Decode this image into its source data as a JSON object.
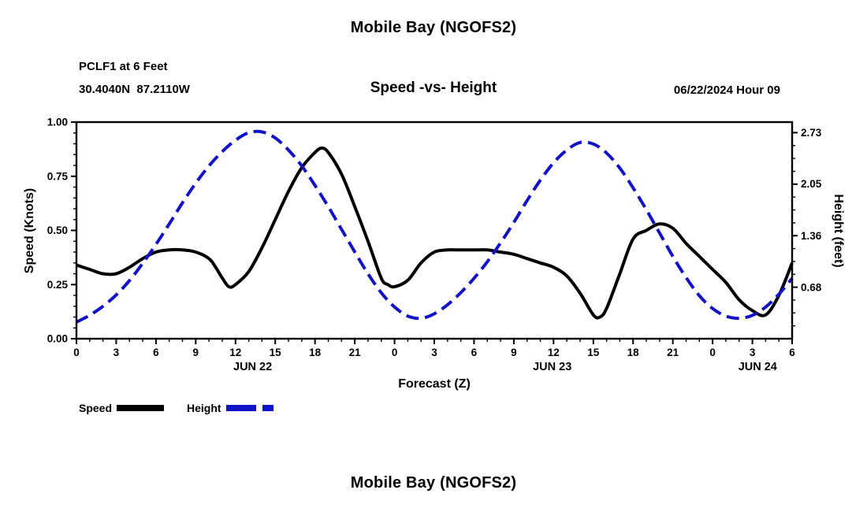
{
  "titles": {
    "top": "Mobile Bay (NGOFS2)",
    "bottom": "Mobile Bay (NGOFS2)"
  },
  "legend": {
    "speed_label": "Speed",
    "height_label": "Height"
  },
  "chart_data": {
    "type": "line",
    "title": "Mobile Bay (NGOFS2)",
    "station": "PCLF1 at 6 Feet",
    "coordinates": "30.4040N  87.2110W",
    "subtitle": "Speed -vs- Height",
    "datetime": "06/22/2024 Hour 09",
    "xlabel": "Forecast (Z)",
    "ylabel_left": "Speed (Knots)",
    "ylabel_right": "Height (feet)",
    "x_range": [
      0,
      54
    ],
    "y_left_range": [
      0,
      1.0
    ],
    "y_right_range": [
      0,
      2.87
    ],
    "x_minor_step": 1,
    "x_ticks": {
      "positions": [
        0,
        3,
        6,
        9,
        12,
        15,
        18,
        21,
        24,
        27,
        30,
        33,
        36,
        39,
        42,
        45,
        48,
        51,
        54
      ],
      "labels": [
        "0",
        "3",
        "6",
        "9",
        "12",
        "15",
        "18",
        "21",
        "0",
        "3",
        "6",
        "9",
        "12",
        "15",
        "18",
        "21",
        "0",
        "3",
        "6"
      ]
    },
    "y_left_ticks": {
      "values": [
        0,
        0.25,
        0.5,
        0.75,
        1.0
      ],
      "labels": [
        "0.00",
        "0.25",
        "0.50",
        "0.75",
        "1.00"
      ]
    },
    "y_right_ticks": {
      "values": [
        0.68,
        1.36,
        2.05,
        2.73
      ],
      "labels": [
        "0.68",
        "1.36",
        "2.05",
        "2.73"
      ]
    },
    "date_labels": [
      {
        "hour": 13.3,
        "label": "JUN 22"
      },
      {
        "hour": 35.9,
        "label": "JUN 23"
      },
      {
        "hour": 51.4,
        "label": "JUN 24"
      }
    ],
    "series": [
      {
        "name": "Speed",
        "axis": "left",
        "color": "#000000",
        "width": 4,
        "dash": null,
        "x": [
          0,
          1,
          2,
          3,
          4,
          5,
          6,
          7,
          8,
          9,
          10,
          10.5,
          11,
          11.5,
          12,
          13,
          14,
          15,
          16,
          17,
          18,
          18.5,
          19,
          20,
          21,
          22,
          23,
          23.5,
          24,
          25,
          26,
          27,
          28,
          29,
          30,
          31,
          32,
          33,
          34,
          35,
          36,
          37,
          38,
          39,
          39.5,
          40,
          41,
          42,
          43,
          44,
          45,
          46,
          47,
          48,
          49,
          50,
          51,
          52,
          53,
          54
        ],
        "y": [
          0.34,
          0.32,
          0.3,
          0.3,
          0.33,
          0.37,
          0.4,
          0.41,
          0.41,
          0.4,
          0.37,
          0.33,
          0.28,
          0.24,
          0.25,
          0.31,
          0.42,
          0.55,
          0.68,
          0.79,
          0.86,
          0.88,
          0.86,
          0.76,
          0.61,
          0.45,
          0.28,
          0.25,
          0.24,
          0.27,
          0.35,
          0.4,
          0.41,
          0.41,
          0.41,
          0.41,
          0.4,
          0.39,
          0.37,
          0.35,
          0.33,
          0.29,
          0.21,
          0.11,
          0.1,
          0.14,
          0.3,
          0.46,
          0.5,
          0.53,
          0.51,
          0.44,
          0.38,
          0.32,
          0.26,
          0.18,
          0.13,
          0.11,
          0.2,
          0.35
        ]
      },
      {
        "name": "Height",
        "axis": "right",
        "color": "#1212c8",
        "width": 4,
        "dash": "16 8",
        "x": [
          0,
          1,
          2,
          3,
          4,
          5,
          6,
          7,
          8,
          9,
          10,
          11,
          12,
          13,
          14,
          15,
          16,
          17,
          18,
          19,
          20,
          21,
          22,
          23,
          24,
          25,
          26,
          27,
          28,
          29,
          30,
          31,
          32,
          33,
          34,
          35,
          36,
          37,
          38,
          39,
          40,
          41,
          42,
          43,
          44,
          45,
          46,
          47,
          48,
          49,
          50,
          51,
          52,
          53,
          54
        ],
        "y": [
          0.22,
          0.31,
          0.43,
          0.58,
          0.77,
          1.0,
          1.25,
          1.52,
          1.8,
          2.06,
          2.29,
          2.48,
          2.63,
          2.73,
          2.74,
          2.66,
          2.5,
          2.29,
          2.03,
          1.75,
          1.45,
          1.15,
          0.86,
          0.61,
          0.42,
          0.3,
          0.27,
          0.33,
          0.45,
          0.61,
          0.8,
          1.02,
          1.27,
          1.54,
          1.83,
          2.1,
          2.33,
          2.5,
          2.6,
          2.58,
          2.46,
          2.26,
          2.0,
          1.71,
          1.4,
          1.09,
          0.81,
          0.57,
          0.4,
          0.3,
          0.27,
          0.31,
          0.42,
          0.59,
          0.8
        ]
      }
    ]
  }
}
